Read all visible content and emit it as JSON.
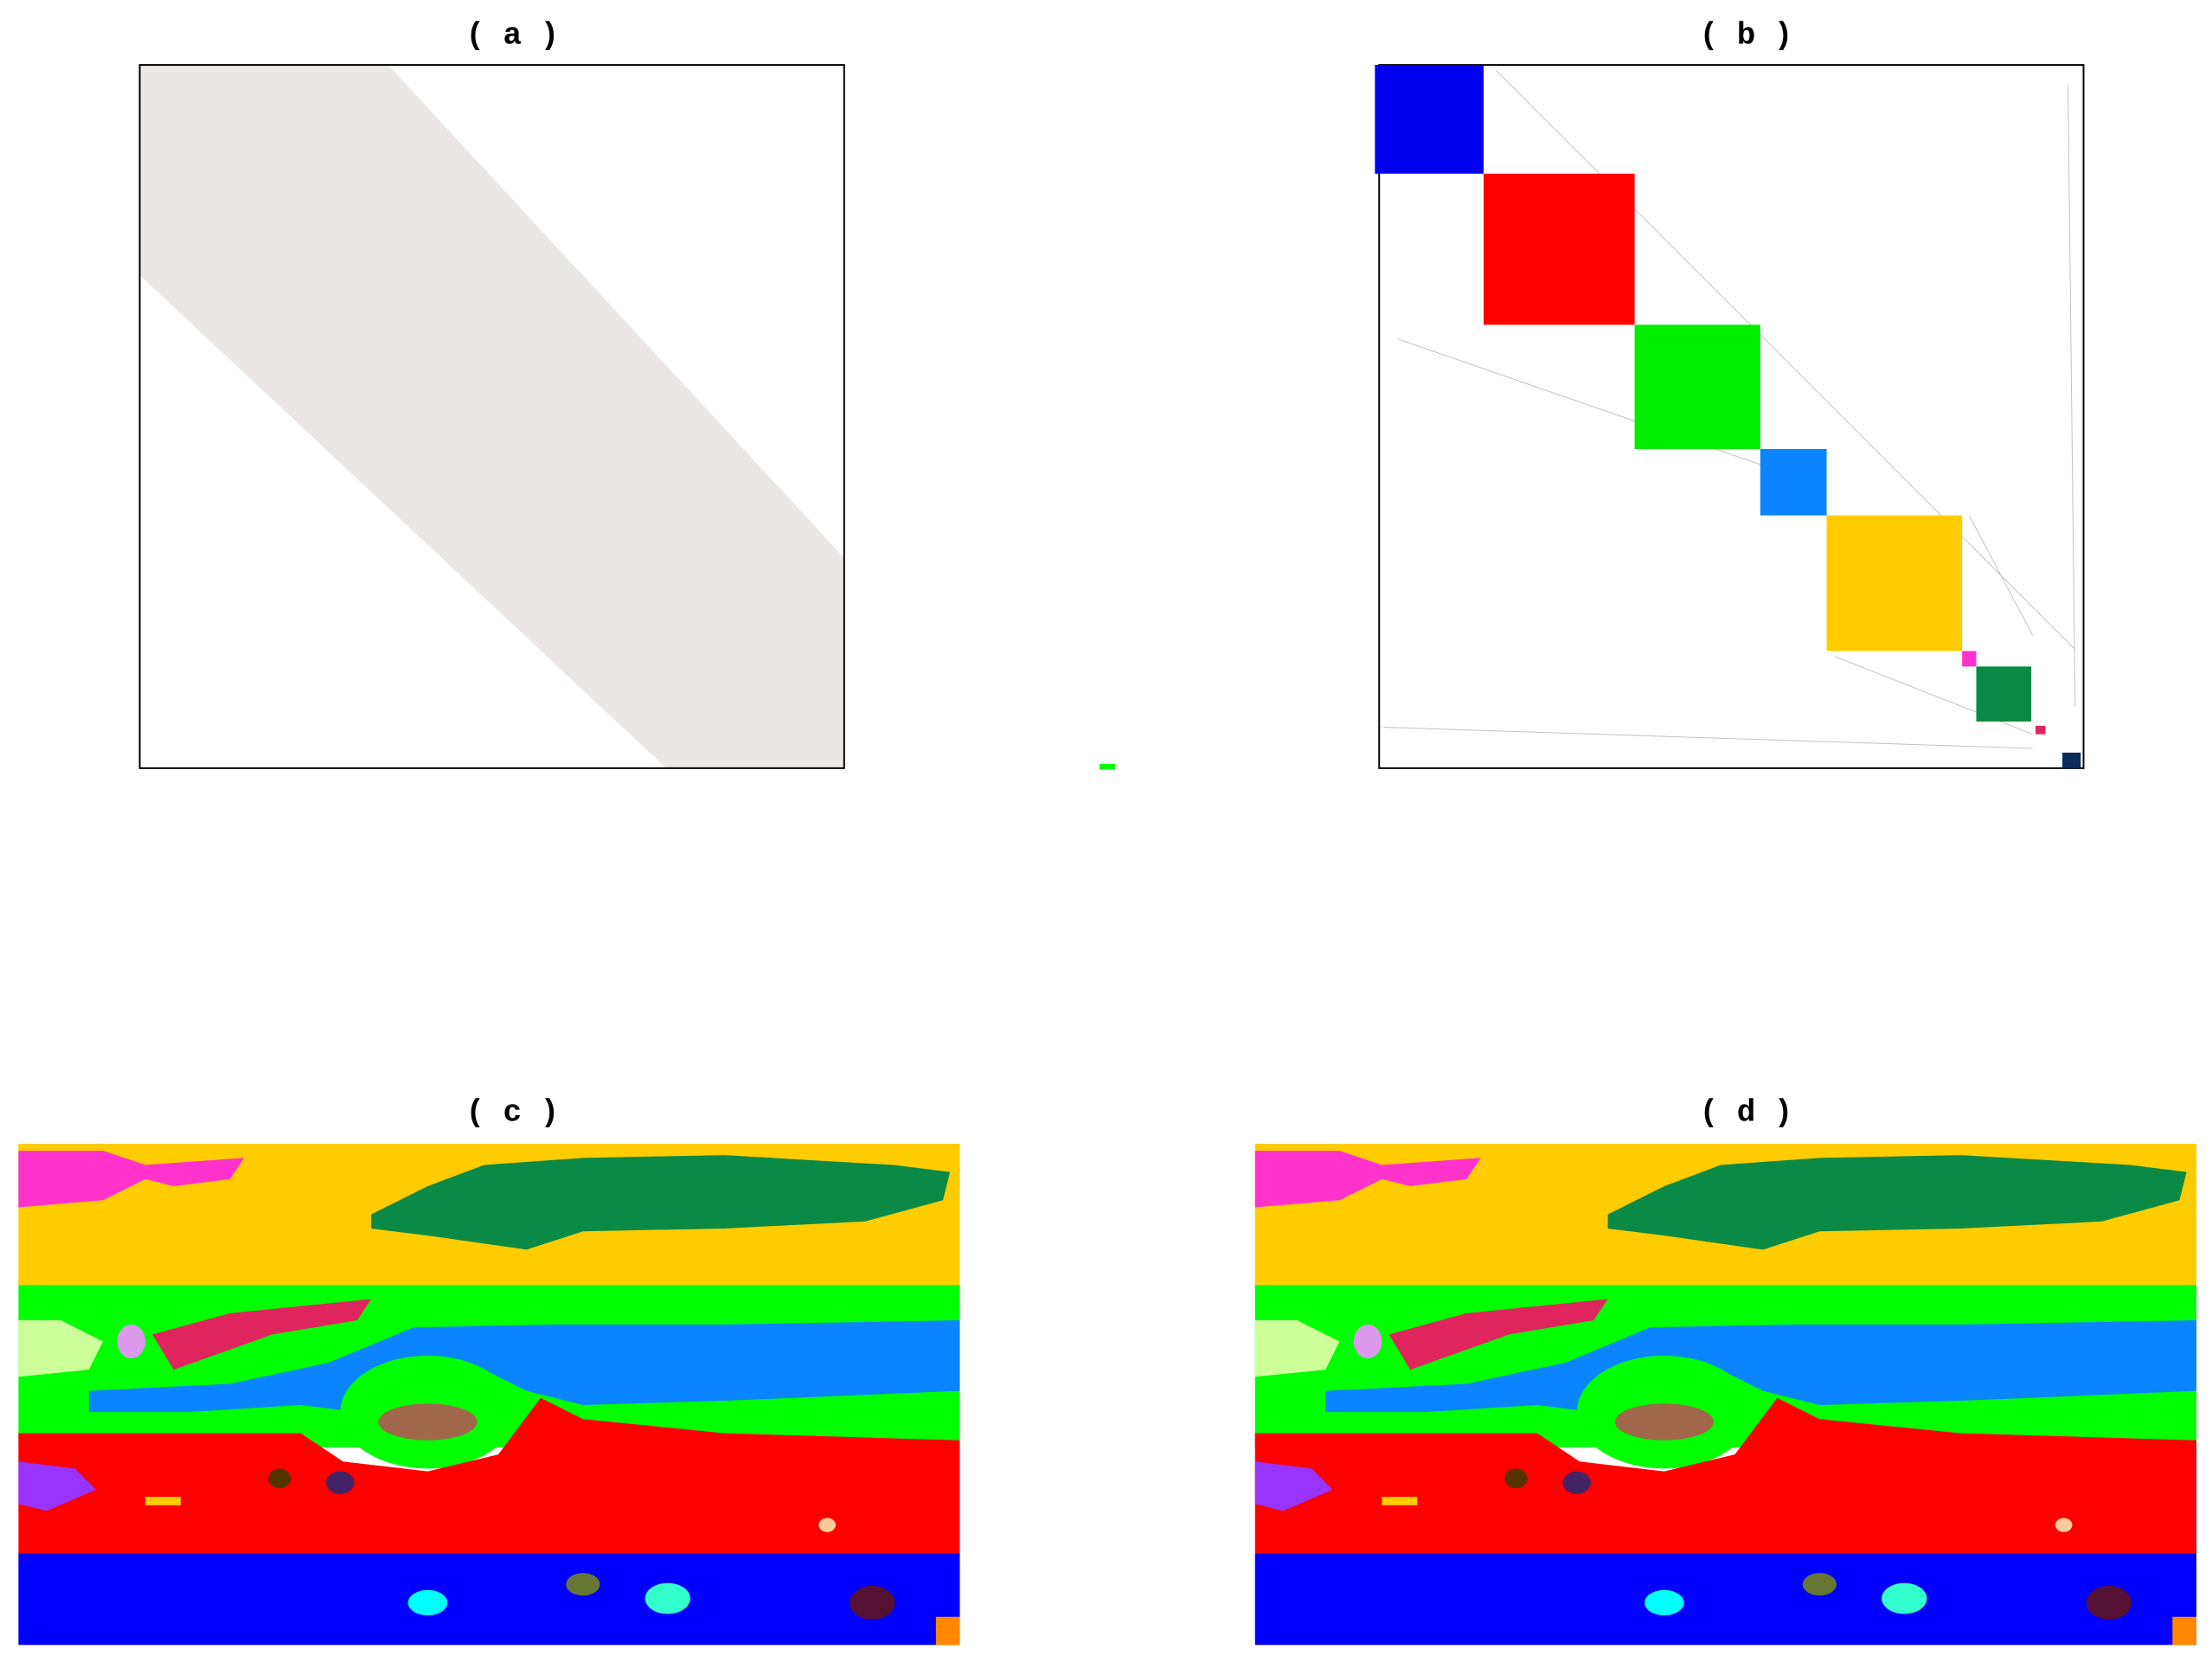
{
  "panels": [
    {
      "label": "( a )"
    },
    {
      "label": "( b )"
    },
    {
      "label": "( c )"
    },
    {
      "label": "( d )"
    }
  ]
}
